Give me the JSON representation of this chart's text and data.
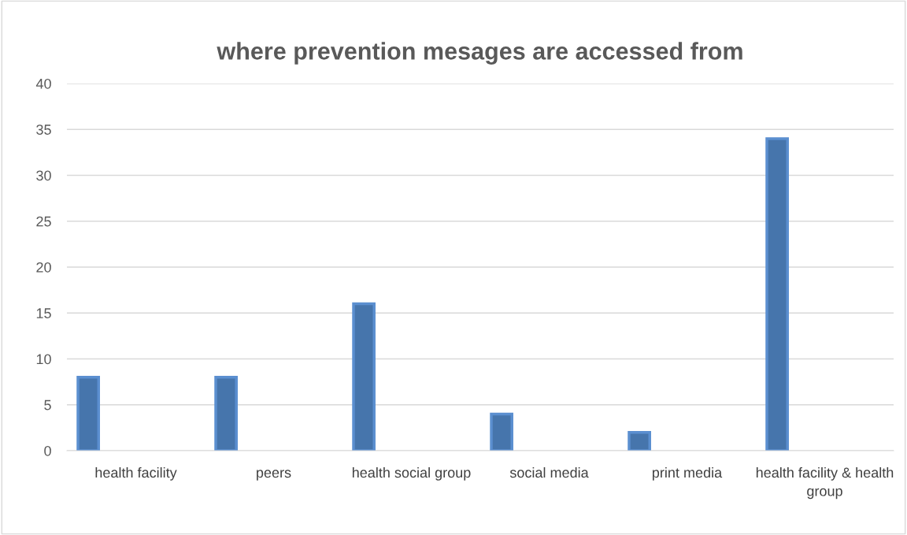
{
  "chart_data": {
    "type": "bar",
    "title": "where prevention mesages are accessed from",
    "categories": [
      "health facility",
      "peers",
      "health social group",
      "social media",
      "print media",
      "health facility & health group"
    ],
    "values": [
      8,
      8,
      16,
      4,
      2,
      34
    ],
    "color": "#4675ac",
    "ylim": [
      0,
      40
    ],
    "yticks": [
      0,
      5,
      10,
      15,
      20,
      25,
      30,
      35,
      40
    ],
    "grid": "y",
    "legend": false
  }
}
